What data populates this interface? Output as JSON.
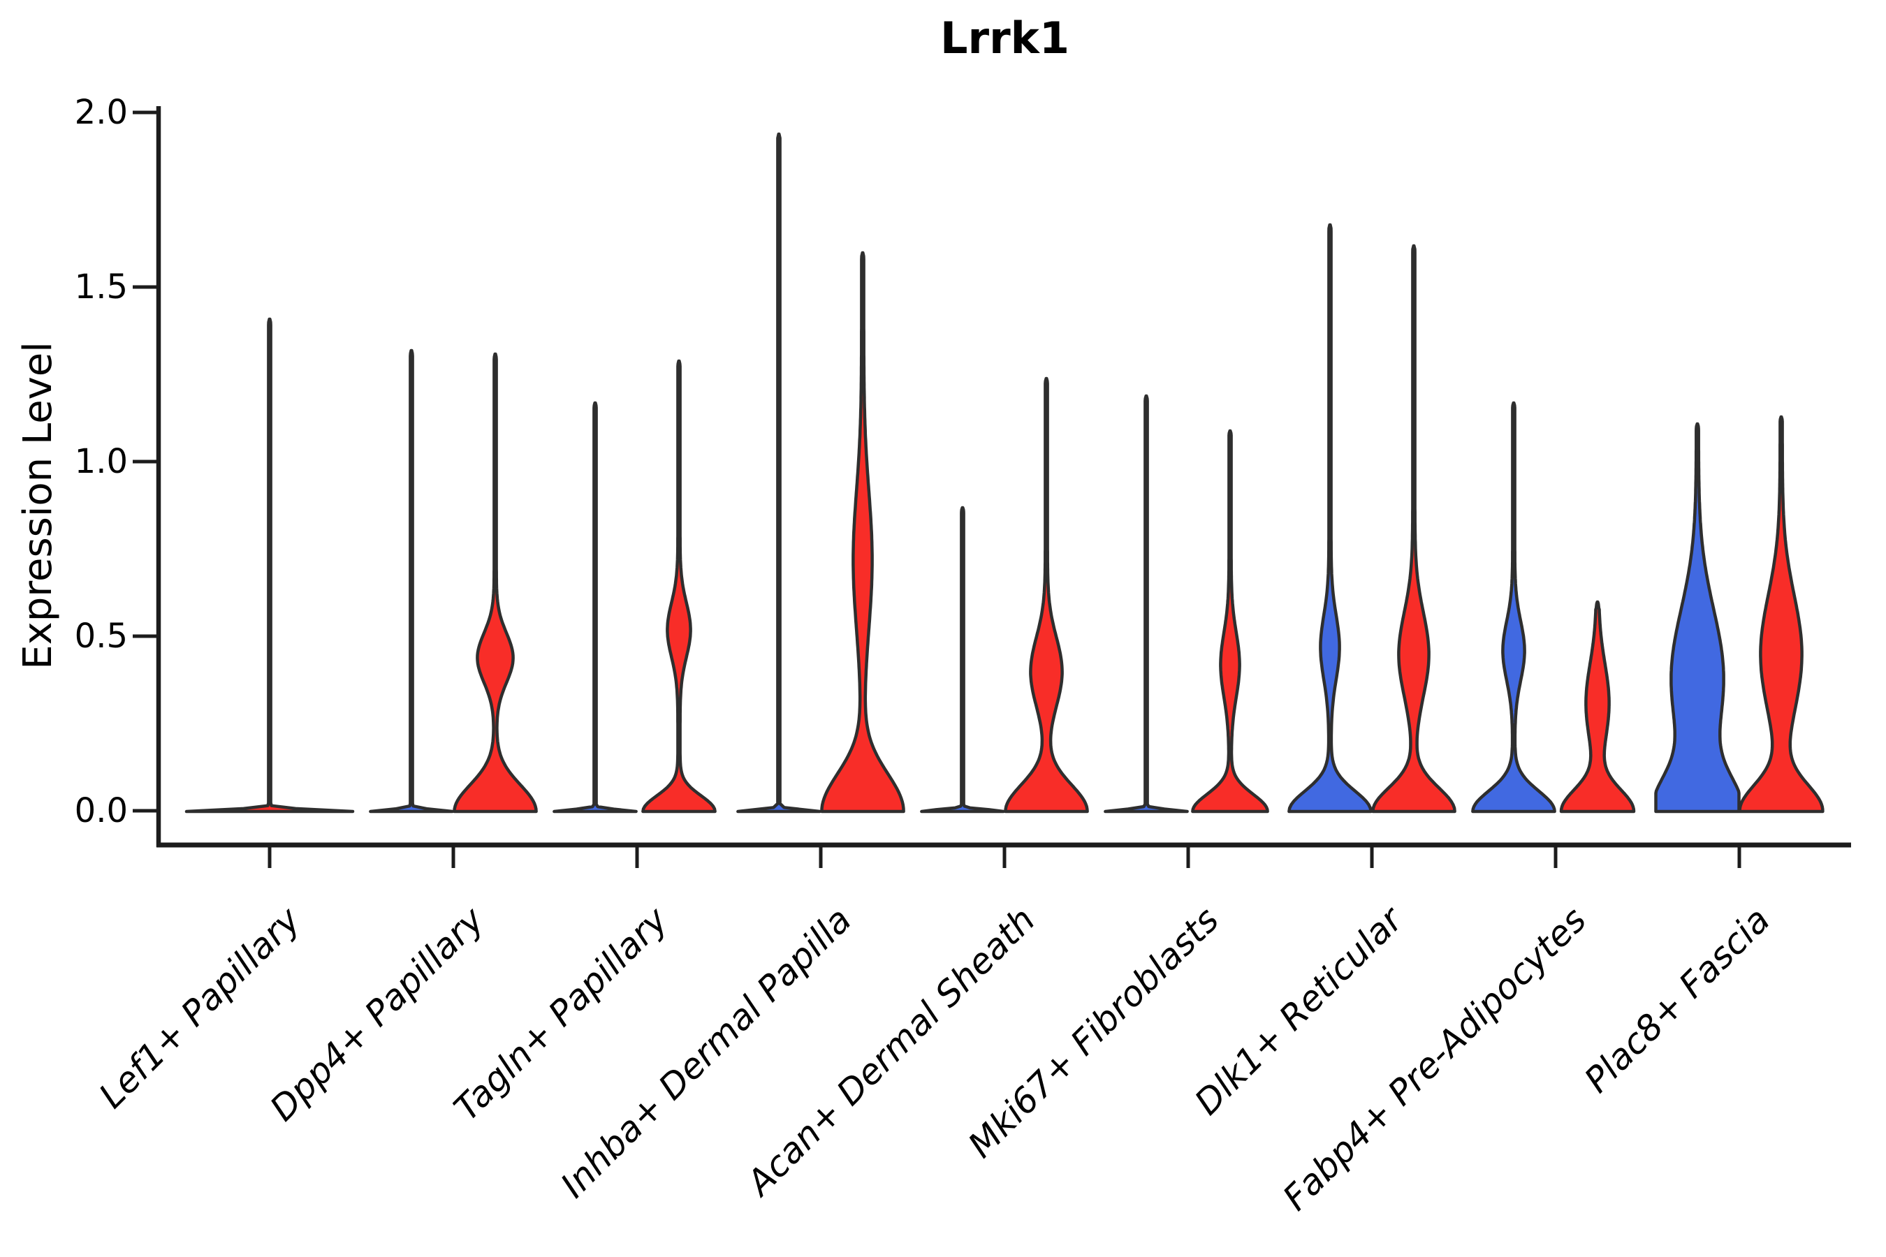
{
  "chart_data": {
    "type": "violin",
    "title": "Lrrk1",
    "ylabel": "Expression Level",
    "ylim": [
      0.0,
      2.0
    ],
    "yticks": [
      "0.0",
      "0.5",
      "1.0",
      "1.5",
      "2.0"
    ],
    "ytick_values": [
      0.0,
      0.5,
      1.0,
      1.5,
      2.0
    ],
    "grid": false,
    "legend": "none",
    "colors": {
      "red": "#F82D28",
      "blue": "#4169E1",
      "outline": "#2e2e2e",
      "axis": "#1c1c1c"
    },
    "categories": [
      "Lef1+ Papillary",
      "Dpp4+ Papillary",
      "Tagln+ Papillary",
      "Inhba+ Dermal Papilla",
      "Acan+ Dermal Sheath",
      "Mki67+ Fibroblasts",
      "Dlk1+ Reticular",
      "Fabp4+ Pre-Adipocytes",
      "Plac8+ Fascia"
    ],
    "groups": [
      {
        "label": "Lef1+ Papillary",
        "violins": [
          {
            "side": "single",
            "color": "red",
            "max": 1.41,
            "base_hw": 118,
            "bell_h": 0.012,
            "bulge": null,
            "max_hw": 119
          }
        ]
      },
      {
        "label": "Dpp4+ Papillary",
        "violins": [
          {
            "side": "left",
            "color": "blue",
            "max": 1.32,
            "base_hw": 57,
            "bell_h": 0.012,
            "bulge": null
          },
          {
            "side": "right",
            "color": "red",
            "max": 1.31,
            "base_hw": 57,
            "bell_h": 0.17,
            "bulge": {
              "v": 0.44,
              "hw": 24,
              "sigma": 0.1
            }
          }
        ]
      },
      {
        "label": "Tagln+ Papillary",
        "violins": [
          {
            "side": "left",
            "color": "blue",
            "max": 1.17,
            "base_hw": 57,
            "bell_h": 0.012,
            "bulge": null
          },
          {
            "side": "right",
            "color": "red",
            "max": 1.29,
            "base_hw": 50,
            "bell_h": 0.1,
            "bulge": {
              "v": 0.52,
              "hw": 15,
              "sigma": 0.11
            }
          }
        ]
      },
      {
        "label": "Inhba+ Dermal Papilla",
        "violins": [
          {
            "side": "left",
            "color": "blue",
            "max": 1.94,
            "base_hw": 57,
            "bell_h": 0.012,
            "bulge": null
          },
          {
            "side": "right",
            "color": "red",
            "max": 1.6,
            "base_hw": 57,
            "bell_h": 0.24,
            "bulge": {
              "v": 0.72,
              "hw": 12,
              "sigma": 0.28
            }
          }
        ]
      },
      {
        "label": "Acan+ Dermal Sheath",
        "violins": [
          {
            "side": "left",
            "color": "blue",
            "max": 0.87,
            "base_hw": 57,
            "bell_h": 0.012,
            "bulge": null
          },
          {
            "side": "right",
            "color": "red",
            "max": 1.24,
            "base_hw": 57,
            "bell_h": 0.17,
            "bulge": {
              "v": 0.4,
              "hw": 21,
              "sigma": 0.14
            }
          }
        ]
      },
      {
        "label": "Mki67+ Fibroblasts",
        "violins": [
          {
            "side": "left",
            "color": "blue",
            "max": 1.19,
            "base_hw": 57,
            "bell_h": 0.012,
            "bulge": null
          },
          {
            "side": "right",
            "color": "red",
            "max": 1.09,
            "base_hw": 52,
            "bell_h": 0.11,
            "bulge": {
              "v": 0.42,
              "hw": 12,
              "sigma": 0.13
            }
          }
        ]
      },
      {
        "label": "Dlk1+ Reticular",
        "violins": [
          {
            "side": "left",
            "color": "blue",
            "max": 1.68,
            "base_hw": 57,
            "bell_h": 0.13,
            "bulge": {
              "v": 0.47,
              "hw": 12,
              "sigma": 0.13
            }
          },
          {
            "side": "right",
            "color": "red",
            "max": 1.62,
            "base_hw": 57,
            "bell_h": 0.15,
            "bulge": {
              "v": 0.45,
              "hw": 20,
              "sigma": 0.17
            }
          }
        ]
      },
      {
        "label": "Fabp4+ Pre-Adipocytes",
        "violins": [
          {
            "side": "left",
            "color": "blue",
            "max": 1.17,
            "base_hw": 57,
            "bell_h": 0.13,
            "bulge": {
              "v": 0.46,
              "hw": 14,
              "sigma": 0.12
            }
          },
          {
            "side": "right",
            "color": "red",
            "max": 0.6,
            "base_hw": 50,
            "bell_h": 0.14,
            "bulge": {
              "v": 0.31,
              "hw": 15,
              "sigma": 0.16
            }
          }
        ]
      },
      {
        "label": "Plac8+ Fascia",
        "violins": [
          {
            "side": "left",
            "color": "blue",
            "max": 1.11,
            "base_hw": 57,
            "bell_h": 0.22,
            "bulge": {
              "v": 0.38,
              "hw": 36,
              "sigma": 0.28
            }
          },
          {
            "side": "right",
            "color": "red",
            "max": 1.13,
            "base_hw": 57,
            "bell_h": 0.17,
            "bulge": {
              "v": 0.45,
              "hw": 28,
              "sigma": 0.24
            }
          }
        ]
      }
    ]
  }
}
